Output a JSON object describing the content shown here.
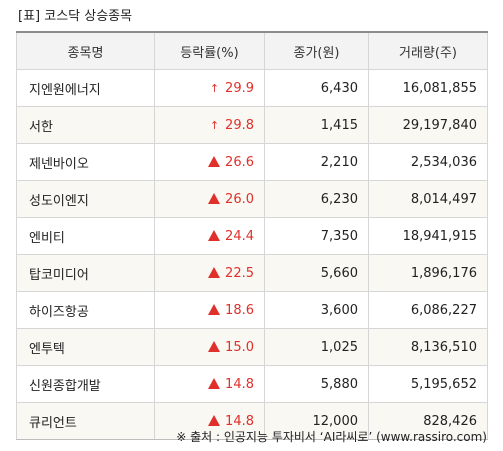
{
  "title": "[표] 코스닥 상승종목",
  "table": {
    "headers": [
      "종목명",
      "등락률(%)",
      "종가(원)",
      "거래량(주)"
    ],
    "rows": [
      {
        "name": "지엔원에너지",
        "change": "29.9",
        "marker": "up-limit",
        "close": "6,430",
        "volume": "16,081,855"
      },
      {
        "name": "서한",
        "change": "29.8",
        "marker": "up-limit",
        "close": "1,415",
        "volume": "29,197,840"
      },
      {
        "name": "제넨바이오",
        "change": "26.6",
        "marker": "up",
        "close": "2,210",
        "volume": "2,534,036"
      },
      {
        "name": "성도이엔지",
        "change": "26.0",
        "marker": "up",
        "close": "6,230",
        "volume": "8,014,497"
      },
      {
        "name": "엔비티",
        "change": "24.4",
        "marker": "up",
        "close": "7,350",
        "volume": "18,941,915"
      },
      {
        "name": "탑코미디어",
        "change": "22.5",
        "marker": "up",
        "close": "5,660",
        "volume": "1,896,176"
      },
      {
        "name": "하이즈항공",
        "change": "18.6",
        "marker": "up",
        "close": "3,600",
        "volume": "6,086,227"
      },
      {
        "name": "엔투텍",
        "change": "15.0",
        "marker": "up",
        "close": "1,025",
        "volume": "8,136,510"
      },
      {
        "name": "신원종합개발",
        "change": "14.8",
        "marker": "up",
        "close": "5,880",
        "volume": "5,195,652"
      },
      {
        "name": "큐리언트",
        "change": "14.8",
        "marker": "up",
        "close": "12,000",
        "volume": "828,426"
      }
    ]
  },
  "source": "※ 출처 : 인공지능 투자비서 ‘AI라씨로’ (www.rassiro.com)",
  "colors": {
    "up": "#e0302b",
    "header_bg": "#f3f3f3",
    "stripe_bg": "#f9f8f3",
    "border": "#d6d6d6"
  },
  "icons": {
    "up-limit": "arrow-up-icon",
    "up": "triangle-up-icon"
  }
}
